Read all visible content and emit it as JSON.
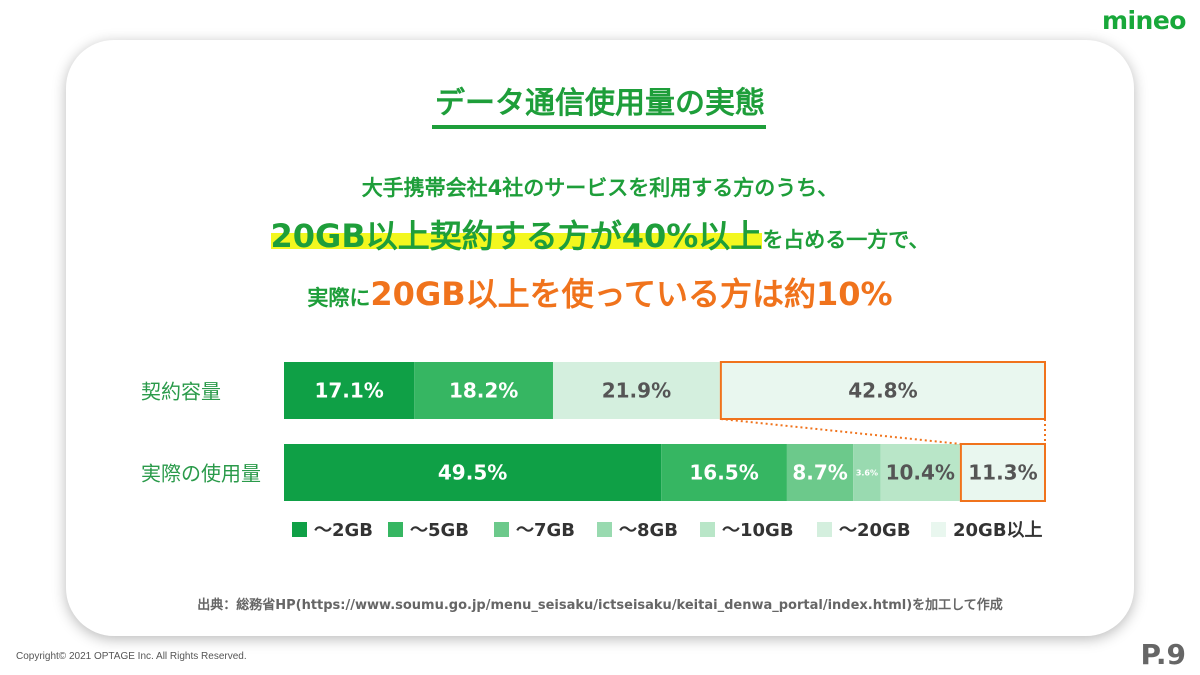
{
  "brand": "mineo",
  "title": "データ通信使用量の実態",
  "lead": {
    "line1": "大手携帯会社4社のサービスを利用する方のうち、",
    "line2_highlight": "20GB以上契約する方が40%以上",
    "line2_tail": "を占める一方で、",
    "line3_prefix": "実際に",
    "line3_emphasis": "20GB以上を使っている方は約10%"
  },
  "colors": {
    "green": "#1e9e3a",
    "orange": "#f0731c",
    "highlight": "#f3f71f",
    "bands": [
      "#0fa046",
      "#36b662",
      "#6cc98b",
      "#99dab0",
      "#b9e6c8",
      "#d4efde",
      "#e9f7ef"
    ]
  },
  "chart_data": {
    "type": "bar",
    "orientation": "horizontal",
    "stacked": true,
    "stacked_100": true,
    "categories": [
      "契約容量",
      "実際の使用量"
    ],
    "legend_placement": "bottom",
    "legend": [
      "～2GB",
      "～5GB",
      "～7GB",
      "～8GB",
      "～10GB",
      "～20GB",
      "20GB以上"
    ],
    "series": [
      {
        "name": "契約容量",
        "segments": [
          {
            "band": 0,
            "value": 17.1,
            "label": "17.1%"
          },
          {
            "band": 1,
            "value": 18.2,
            "label": "18.2%"
          },
          {
            "band": 5,
            "value": 21.9,
            "label": "21.9%"
          },
          {
            "band": 6,
            "value": 42.8,
            "label": "42.8%",
            "highlight": true
          }
        ]
      },
      {
        "name": "実際の使用量",
        "segments": [
          {
            "band": 0,
            "value": 49.5,
            "label": "49.5%"
          },
          {
            "band": 1,
            "value": 16.5,
            "label": "16.5%"
          },
          {
            "band": 2,
            "value": 8.7,
            "label": "8.7%"
          },
          {
            "band": 3,
            "value": 3.6,
            "label": "3.6%"
          },
          {
            "band": 4,
            "value": 10.4,
            "label": "10.4%"
          },
          {
            "band": 6,
            "value": 11.3,
            "label": "11.3%",
            "highlight": true
          }
        ]
      }
    ]
  },
  "source": "出典：総務省HP(https://www.soumu.go.jp/menu_seisaku/ictseisaku/keitai_denwa_portal/index.html)を加工して作成",
  "footer": {
    "copyright": "Copyright© 2021 OPTAGE Inc. All Rights Reserved.",
    "page": "P.9"
  }
}
